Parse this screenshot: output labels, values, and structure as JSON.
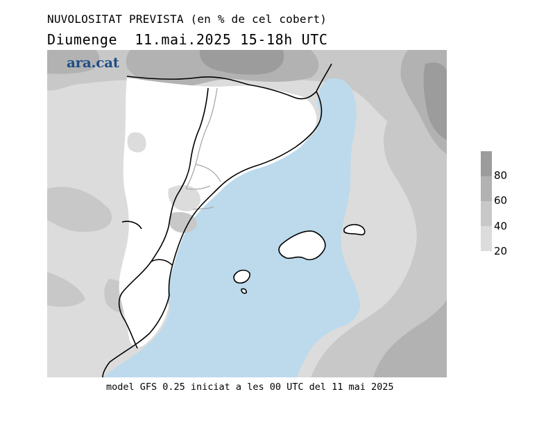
{
  "title": "NUVOLOSITAT PREVISTA (en % de cel cobert)",
  "subtitle": "Diumenge  11.mai.2025 15-18h UTC",
  "footer": "model GFS 0.25 iniciat a les 00 UTC del 11 mai 2025",
  "logo": "ara.cat",
  "colors": {
    "sea": "#bcdaec",
    "land_clear": "#ffffff",
    "c20": "#dcdcdc",
    "c40": "#c8c8c8",
    "c60": "#b2b2b2",
    "c80": "#9c9c9c",
    "border": "#000000",
    "admin_border": "#a8a8a8",
    "logo": "#1f4e86"
  },
  "legend": {
    "levels": [
      {
        "label": "80",
        "color": "#9c9c9c"
      },
      {
        "label": "60",
        "color": "#b2b2b2"
      },
      {
        "label": "40",
        "color": "#c8c8c8"
      },
      {
        "label": "20",
        "color": "#dcdcdc"
      }
    ]
  }
}
